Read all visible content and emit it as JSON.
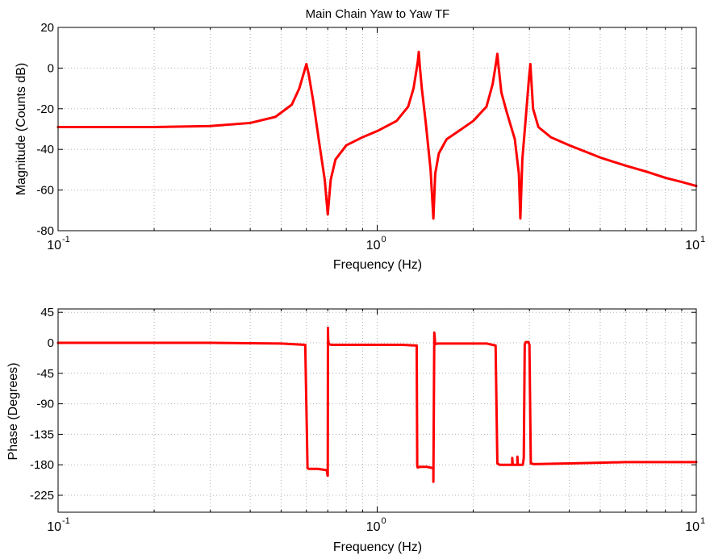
{
  "chart_data": [
    {
      "type": "line",
      "title": "Main Chain Yaw to Yaw TF",
      "xlabel": "Frequency (Hz)",
      "ylabel": "Magnitude (Counts dB)",
      "x_scale": "log",
      "xlim": [
        0.1,
        10
      ],
      "ylim": [
        -80,
        20
      ],
      "yticks": [
        20,
        0,
        -20,
        -40,
        -60,
        -80
      ],
      "xticks": [
        {
          "value": 0.1,
          "base": "10",
          "exp": "-1"
        },
        {
          "value": 1,
          "base": "10",
          "exp": "0"
        },
        {
          "value": 10,
          "base": "10",
          "exp": "1"
        }
      ],
      "grid": true,
      "series": [
        {
          "color": "#ff0000",
          "x": [
            0.1,
            0.2,
            0.3,
            0.4,
            0.48,
            0.54,
            0.57,
            0.59,
            0.6,
            0.61,
            0.63,
            0.66,
            0.685,
            0.7,
            0.715,
            0.74,
            0.8,
            0.9,
            1.0,
            1.15,
            1.25,
            1.3,
            1.34,
            1.35,
            1.36,
            1.38,
            1.42,
            1.47,
            1.5,
            1.52,
            1.56,
            1.65,
            1.8,
            2.0,
            2.2,
            2.3,
            2.36,
            2.38,
            2.4,
            2.45,
            2.55,
            2.7,
            2.78,
            2.81,
            2.85,
            2.92,
            2.99,
            3.02,
            3.08,
            3.2,
            3.5,
            4.0,
            5.0,
            6.0,
            7.0,
            8.0,
            9.0,
            10.0
          ],
          "y": [
            -29,
            -29,
            -28.5,
            -27,
            -24,
            -18,
            -10,
            -2,
            2,
            -3,
            -16,
            -38,
            -55,
            -72,
            -55,
            -45,
            -38,
            -34,
            -31,
            -26,
            -19,
            -10,
            3,
            8,
            1,
            -10,
            -27,
            -50,
            -74,
            -52,
            -42,
            -35,
            -31,
            -26,
            -19,
            -8,
            3,
            7,
            1,
            -12,
            -22,
            -35,
            -52,
            -74,
            -45,
            -25,
            -5,
            2,
            -20,
            -29,
            -34,
            -38,
            -44,
            -48,
            -51,
            -54,
            -56,
            -58
          ]
        }
      ]
    },
    {
      "type": "line",
      "title": "",
      "xlabel": "Frequency (Hz)",
      "ylabel": "Phase (Degrees)",
      "x_scale": "log",
      "xlim": [
        0.1,
        10
      ],
      "ylim": [
        -250,
        50
      ],
      "yticks": [
        45,
        0,
        -45,
        -90,
        -135,
        -180,
        -225
      ],
      "xticks": [
        {
          "value": 0.1,
          "base": "10",
          "exp": "-1"
        },
        {
          "value": 1,
          "base": "10",
          "exp": "0"
        },
        {
          "value": 10,
          "base": "10",
          "exp": "1"
        }
      ],
      "grid": true,
      "series": [
        {
          "color": "#ff0000",
          "x": [
            0.1,
            0.3,
            0.5,
            0.595,
            0.605,
            0.61,
            0.62,
            0.65,
            0.695,
            0.699,
            0.7,
            0.701,
            0.702,
            0.705,
            0.72,
            0.8,
            1.0,
            1.2,
            1.33,
            1.335,
            1.34,
            1.36,
            1.43,
            1.5,
            1.5,
            1.51,
            1.52,
            1.55,
            1.8,
            2.2,
            2.35,
            2.38,
            2.42,
            2.5,
            2.6,
            2.65,
            2.65,
            2.66,
            2.7,
            2.75,
            2.75,
            2.76,
            2.8,
            2.86,
            2.88,
            2.9,
            2.92,
            2.98,
            3.0,
            3.03,
            3.1,
            4.0,
            5.0,
            6.0,
            7.0,
            8.0,
            9.0,
            10.0
          ],
          "y": [
            0,
            0,
            -1,
            -3,
            -185,
            -186,
            -186,
            -186,
            -188,
            -196,
            -196,
            22,
            5,
            -2,
            -3,
            -3,
            -3,
            -3,
            -4,
            -182,
            -184,
            -183,
            -183,
            -185,
            -205,
            15,
            -2,
            -1,
            -1,
            -1,
            -4,
            -178,
            -180,
            -180,
            -180,
            -180,
            -170,
            -180,
            -180,
            -180,
            -168,
            -180,
            -180,
            -180,
            -170,
            -3,
            1,
            1,
            -3,
            -178,
            -179,
            -178,
            -177,
            -176,
            -176,
            -176,
            -176,
            -176
          ]
        }
      ]
    }
  ]
}
